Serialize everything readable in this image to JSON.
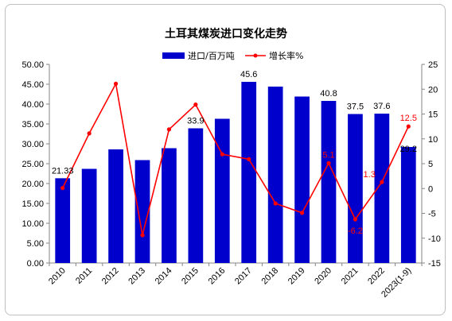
{
  "chart_data": {
    "type": "bar",
    "title": "土耳其煤炭进口变化走势",
    "categories": [
      "2010",
      "2011",
      "2012",
      "2013",
      "2014",
      "2015",
      "2016",
      "2017",
      "2018",
      "2019",
      "2020",
      "2021",
      "2022",
      "2023(1-9)"
    ],
    "series": [
      {
        "name": "进口/百万吨",
        "type": "bar",
        "axis": "left",
        "color": "#0000cc",
        "values": [
          21.33,
          23.7,
          28.6,
          25.9,
          28.9,
          33.9,
          36.3,
          45.6,
          44.4,
          41.9,
          40.8,
          37.5,
          37.6,
          29.2
        ],
        "data_labels": [
          "21.33",
          null,
          null,
          null,
          null,
          "33.9",
          null,
          "45.6",
          null,
          null,
          "40.8",
          "37.5",
          "37.6",
          "29.2"
        ]
      },
      {
        "name": "增长率%",
        "type": "line",
        "axis": "right",
        "color": "#ff0000",
        "values": [
          0.1,
          11.1,
          21.1,
          -9.4,
          11.9,
          16.9,
          6.9,
          5.9,
          -3.0,
          -4.9,
          5.1,
          -6.2,
          1.3,
          12.5
        ],
        "data_labels": [
          null,
          null,
          null,
          null,
          null,
          null,
          null,
          null,
          null,
          null,
          "5.1",
          "-6.2",
          "1.3",
          "12.5"
        ]
      }
    ],
    "y_left": {
      "min": 0,
      "max": 50,
      "step": 5,
      "tick_labels": [
        "0.00",
        "5.00",
        "10.00",
        "15.00",
        "20.00",
        "25.00",
        "30.00",
        "35.00",
        "40.00",
        "45.00",
        "50.00"
      ]
    },
    "y_right": {
      "min": -15,
      "max": 25,
      "step": 5,
      "tick_labels": [
        "-15",
        "-10",
        "-5",
        "0",
        "5",
        "10",
        "15",
        "20",
        "25"
      ]
    },
    "xlabel": "",
    "ylabel": "",
    "grid": false,
    "legend": "top-center"
  }
}
